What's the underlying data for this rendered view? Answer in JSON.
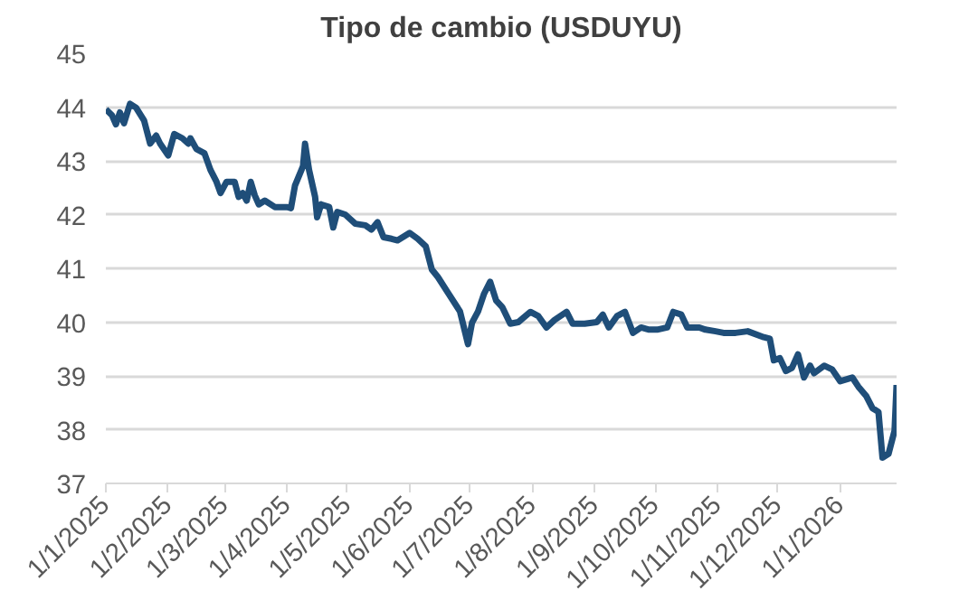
{
  "chart_data": {
    "type": "line",
    "title": "Tipo de cambio (USDUYU)",
    "x": [
      "2025-01-01",
      "2025-01-04",
      "2025-01-06",
      "2025-01-08",
      "2025-01-10",
      "2025-01-13",
      "2025-01-16",
      "2025-01-20",
      "2025-01-23",
      "2025-01-26",
      "2025-01-28",
      "2025-02-01",
      "2025-02-04",
      "2025-02-08",
      "2025-02-11",
      "2025-02-12",
      "2025-02-15",
      "2025-02-19",
      "2025-02-22",
      "2025-02-25",
      "2025-02-27",
      "2025-03-02",
      "2025-03-06",
      "2025-03-08",
      "2025-03-10",
      "2025-03-12",
      "2025-03-14",
      "2025-03-16",
      "2025-03-18",
      "2025-03-21",
      "2025-03-26",
      "2025-04-01",
      "2025-04-03",
      "2025-04-05",
      "2025-04-09",
      "2025-04-10",
      "2025-04-12",
      "2025-04-15",
      "2025-04-16",
      "2025-04-18",
      "2025-04-22",
      "2025-04-24",
      "2025-04-26",
      "2025-04-30",
      "2025-05-05",
      "2025-05-10",
      "2025-05-13",
      "2025-05-16",
      "2025-05-19",
      "2025-05-23",
      "2025-05-26",
      "2025-06-01",
      "2025-06-05",
      "2025-06-09",
      "2025-06-12",
      "2025-06-15",
      "2025-06-20",
      "2025-06-26",
      "2025-06-30",
      "2025-07-02",
      "2025-07-05",
      "2025-07-08",
      "2025-07-11",
      "2025-07-14",
      "2025-07-17",
      "2025-07-21",
      "2025-07-25",
      "2025-07-31",
      "2025-08-04",
      "2025-08-08",
      "2025-08-12",
      "2025-08-18",
      "2025-08-21",
      "2025-08-27",
      "2025-09-02",
      "2025-09-05",
      "2025-09-08",
      "2025-09-12",
      "2025-09-16",
      "2025-09-20",
      "2025-09-24",
      "2025-09-28",
      "2025-10-02",
      "2025-10-07",
      "2025-10-10",
      "2025-10-14",
      "2025-10-17",
      "2025-10-23",
      "2025-10-26",
      "2025-10-31",
      "2025-11-04",
      "2025-11-10",
      "2025-11-16",
      "2025-11-24",
      "2025-11-27",
      "2025-11-29",
      "2025-12-02",
      "2025-12-05",
      "2025-12-08",
      "2025-12-11",
      "2025-12-14",
      "2025-12-17",
      "2025-12-19",
      "2025-12-24",
      "2025-12-28",
      "2026-01-01",
      "2026-01-07",
      "2026-01-10",
      "2026-01-14",
      "2026-01-17",
      "2026-01-20",
      "2026-01-22",
      "2026-01-25",
      "2026-01-28",
      "2026-01-29"
    ],
    "series": [
      {
        "color": "#1f4e79",
        "values": [
          43.96,
          43.85,
          43.68,
          43.9,
          43.7,
          44.06,
          43.99,
          43.75,
          43.32,
          43.47,
          43.32,
          43.1,
          43.5,
          43.42,
          43.32,
          43.42,
          43.22,
          43.14,
          42.83,
          42.61,
          42.4,
          42.61,
          42.61,
          42.33,
          42.4,
          42.26,
          42.61,
          42.36,
          42.19,
          42.26,
          42.14,
          42.14,
          42.12,
          42.54,
          42.9,
          43.32,
          42.83,
          42.33,
          41.95,
          42.19,
          42.14,
          41.76,
          42.05,
          42.0,
          41.83,
          41.8,
          41.72,
          41.86,
          41.58,
          41.55,
          41.52,
          41.66,
          41.55,
          41.41,
          40.98,
          40.84,
          40.55,
          40.2,
          39.59,
          39.99,
          40.2,
          40.53,
          40.75,
          40.4,
          40.28,
          39.97,
          40.0,
          40.19,
          40.11,
          39.9,
          40.04,
          40.19,
          39.97,
          39.97,
          40.0,
          40.14,
          39.9,
          40.11,
          40.19,
          39.8,
          39.9,
          39.86,
          39.86,
          39.9,
          40.19,
          40.14,
          39.9,
          39.9,
          39.86,
          39.83,
          39.8,
          39.8,
          39.83,
          39.72,
          39.69,
          39.29,
          39.33,
          39.09,
          39.15,
          39.4,
          38.97,
          39.19,
          39.05,
          39.19,
          39.12,
          38.9,
          38.97,
          38.8,
          38.62,
          38.4,
          38.33,
          37.48,
          37.55,
          37.98,
          38.83
        ]
      }
    ],
    "xlim": [
      "2025-01-01",
      "2026-01-29"
    ],
    "xticks": [
      {
        "value": "2025-01-01",
        "label": "1/1/2025"
      },
      {
        "value": "2025-02-01",
        "label": "1/2/2025"
      },
      {
        "value": "2025-03-01",
        "label": "1/3/2025"
      },
      {
        "value": "2025-04-01",
        "label": "1/4/2025"
      },
      {
        "value": "2025-05-01",
        "label": "1/5/2025"
      },
      {
        "value": "2025-06-01",
        "label": "1/6/2025"
      },
      {
        "value": "2025-07-01",
        "label": "1/7/2025"
      },
      {
        "value": "2025-08-01",
        "label": "1/8/2025"
      },
      {
        "value": "2025-09-01",
        "label": "1/9/2025"
      },
      {
        "value": "2025-10-01",
        "label": "1/10/2025"
      },
      {
        "value": "2025-11-01",
        "label": "1/11/2025"
      },
      {
        "value": "2025-12-01",
        "label": "1/12/2025"
      },
      {
        "value": "2026-01-01",
        "label": "1/1/2026"
      }
    ],
    "ylim": [
      37,
      45
    ],
    "yticks": [
      37,
      38,
      39,
      40,
      41,
      42,
      43,
      44,
      45
    ],
    "grid": "y",
    "marker": "none",
    "line_style": "solid"
  }
}
